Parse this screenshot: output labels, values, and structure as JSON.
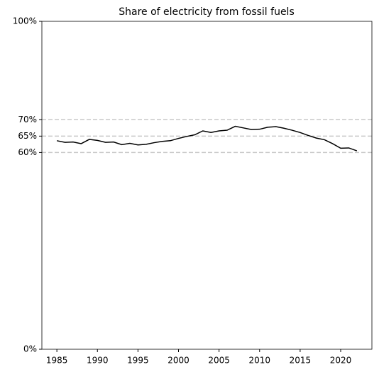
{
  "chart_data": {
    "type": "line",
    "title": "Share of electricity from fossil fuels",
    "x": [
      1985,
      1986,
      1987,
      1988,
      1989,
      1990,
      1991,
      1992,
      1993,
      1994,
      1995,
      1996,
      1997,
      1998,
      1999,
      2000,
      2001,
      2002,
      2003,
      2004,
      2005,
      2006,
      2007,
      2008,
      2009,
      2010,
      2011,
      2012,
      2013,
      2014,
      2015,
      2016,
      2017,
      2018,
      2019,
      2020,
      2021,
      2022
    ],
    "series": [
      {
        "color": "#000000",
        "values": [
          63.6,
          63.1,
          63.2,
          62.7,
          64.0,
          63.7,
          63.1,
          63.2,
          62.4,
          62.8,
          62.3,
          62.5,
          63.0,
          63.4,
          63.6,
          64.3,
          64.9,
          65.4,
          66.6,
          66.1,
          66.6,
          66.8,
          68.0,
          67.5,
          67.0,
          67.1,
          67.7,
          67.9,
          67.4,
          66.8,
          66.1,
          65.2,
          64.4,
          63.9,
          62.7,
          61.3,
          61.4,
          60.5
        ]
      }
    ],
    "xlim": [
      1983.15,
      2023.85
    ],
    "xticks": [
      1985,
      1990,
      1995,
      2000,
      2005,
      2010,
      2015,
      2020
    ],
    "ylim": [
      0,
      100
    ],
    "yticks": [
      {
        "value": 0,
        "label": "0%"
      },
      {
        "value": 60,
        "label": "60%"
      },
      {
        "value": 65,
        "label": "65%"
      },
      {
        "value": 70,
        "label": "70%"
      },
      {
        "value": 100,
        "label": "100%"
      }
    ],
    "hlines": [
      60,
      65,
      70
    ],
    "hline_color": "#c8c8c8"
  }
}
